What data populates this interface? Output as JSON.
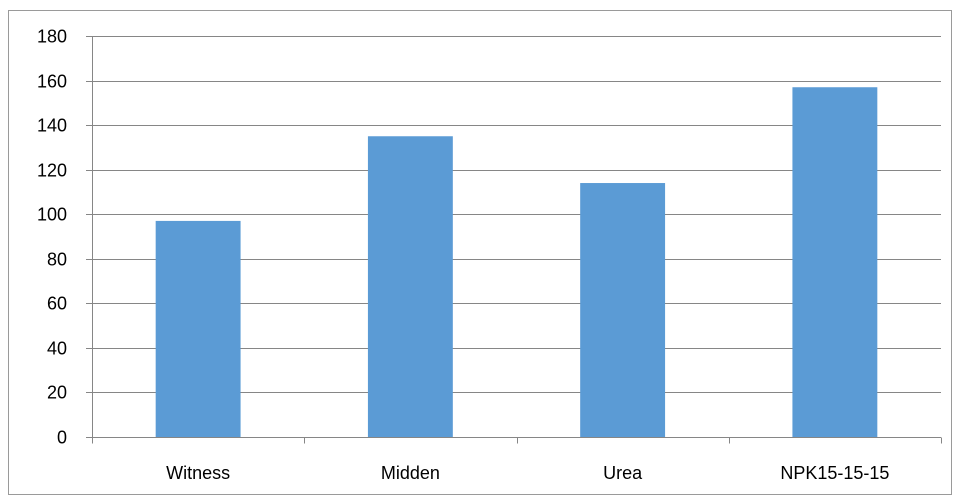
{
  "chart_data": {
    "type": "bar",
    "categories": [
      "Witness",
      "Midden",
      "Urea",
      "NPK15-15-15"
    ],
    "values": [
      97,
      135,
      114,
      157
    ],
    "title": "",
    "xlabel": "",
    "ylabel": "",
    "ylim": [
      0,
      180
    ],
    "yticks": [
      0,
      20,
      40,
      60,
      80,
      100,
      120,
      140,
      160,
      180
    ],
    "grid": true,
    "legend": "none",
    "bar_color": "#5B9BD5",
    "grid_color": "#868686"
  }
}
